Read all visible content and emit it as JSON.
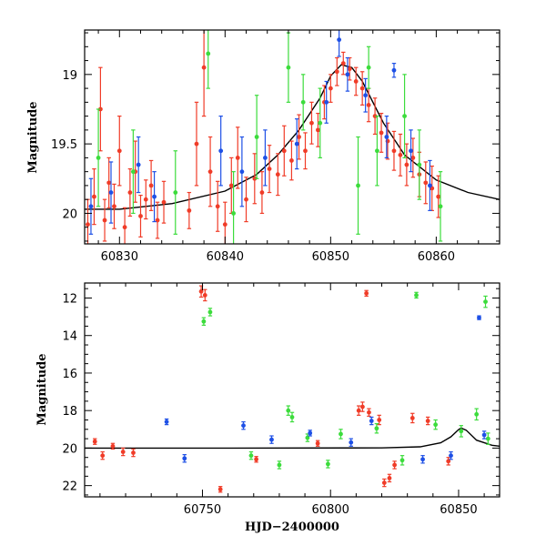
{
  "figure": {
    "xlabel": "HJD−2400000",
    "ylabel_top": "Magnitude",
    "ylabel_bottom": "Magnitude"
  },
  "colors": {
    "red": "#f03c28",
    "green": "#3cdc3c",
    "blue": "#1e50e6",
    "model": "#000000"
  },
  "chart_data": [
    {
      "type": "scatter",
      "panel": "top",
      "title": "",
      "xlabel": "",
      "ylabel": "Magnitude",
      "xlim": [
        60826.7,
        60866.0
      ],
      "ylim": [
        20.22,
        18.68
      ],
      "y_inverted": true,
      "xticks": [
        60830,
        60840,
        60850,
        60860
      ],
      "yticks": [
        19,
        19.5,
        20
      ],
      "model_curve": {
        "description": "smooth peaked light-curve model",
        "x": [
          60826.7,
          60830,
          60835,
          60840,
          60843,
          60845,
          60847,
          60849,
          60850,
          60851,
          60852,
          60853,
          60855,
          60857,
          60860,
          60863,
          60866
        ],
        "y": [
          19.97,
          19.97,
          19.93,
          19.84,
          19.72,
          19.58,
          19.4,
          19.17,
          19.01,
          18.93,
          18.95,
          19.05,
          19.35,
          19.58,
          19.76,
          19.85,
          19.9
        ]
      },
      "series": [
        {
          "color": "red",
          "points": [
            {
              "x": 60827.0,
              "y": 20.08,
              "err": 0.18
            },
            {
              "x": 60827.6,
              "y": 19.88,
              "err": 0.2
            },
            {
              "x": 60828.2,
              "y": 19.25,
              "err": 0.3
            },
            {
              "x": 60828.6,
              "y": 20.05,
              "err": 0.15
            },
            {
              "x": 60829.0,
              "y": 19.78,
              "err": 0.18
            },
            {
              "x": 60829.5,
              "y": 19.95,
              "err": 0.16
            },
            {
              "x": 60830.0,
              "y": 19.55,
              "err": 0.25
            },
            {
              "x": 60830.5,
              "y": 20.1,
              "err": 0.14
            },
            {
              "x": 60831.0,
              "y": 19.85,
              "err": 0.17
            },
            {
              "x": 60831.5,
              "y": 19.7,
              "err": 0.22
            },
            {
              "x": 60832.0,
              "y": 20.02,
              "err": 0.15
            },
            {
              "x": 60832.5,
              "y": 19.9,
              "err": 0.14
            },
            {
              "x": 60833.0,
              "y": 19.8,
              "err": 0.18
            },
            {
              "x": 60833.6,
              "y": 20.05,
              "err": 0.13
            },
            {
              "x": 60834.2,
              "y": 19.92,
              "err": 0.15
            },
            {
              "x": 60836.6,
              "y": 19.98,
              "err": 0.13
            },
            {
              "x": 60837.3,
              "y": 19.5,
              "err": 0.3
            },
            {
              "x": 60838.0,
              "y": 18.95,
              "err": 0.35
            },
            {
              "x": 60838.6,
              "y": 19.7,
              "err": 0.25
            },
            {
              "x": 60839.3,
              "y": 19.95,
              "err": 0.18
            },
            {
              "x": 60840.0,
              "y": 20.08,
              "err": 0.16
            },
            {
              "x": 60840.6,
              "y": 19.8,
              "err": 0.2
            },
            {
              "x": 60841.2,
              "y": 19.6,
              "err": 0.22
            },
            {
              "x": 60842.0,
              "y": 19.9,
              "err": 0.16
            },
            {
              "x": 60842.8,
              "y": 19.75,
              "err": 0.18
            },
            {
              "x": 60843.5,
              "y": 19.85,
              "err": 0.15
            },
            {
              "x": 60844.2,
              "y": 19.68,
              "err": 0.17
            },
            {
              "x": 60845.0,
              "y": 19.72,
              "err": 0.15
            },
            {
              "x": 60845.6,
              "y": 19.55,
              "err": 0.18
            },
            {
              "x": 60846.3,
              "y": 19.62,
              "err": 0.14
            },
            {
              "x": 60847.0,
              "y": 19.45,
              "err": 0.16
            },
            {
              "x": 60847.6,
              "y": 19.55,
              "err": 0.13
            },
            {
              "x": 60848.2,
              "y": 19.35,
              "err": 0.15
            },
            {
              "x": 60848.8,
              "y": 19.4,
              "err": 0.12
            },
            {
              "x": 60849.4,
              "y": 19.2,
              "err": 0.12
            },
            {
              "x": 60850.0,
              "y": 19.1,
              "err": 0.1
            },
            {
              "x": 60850.6,
              "y": 18.98,
              "err": 0.1
            },
            {
              "x": 60851.2,
              "y": 18.92,
              "err": 0.08
            },
            {
              "x": 60851.8,
              "y": 18.96,
              "err": 0.08
            },
            {
              "x": 60852.4,
              "y": 19.05,
              "err": 0.1
            },
            {
              "x": 60853.0,
              "y": 19.1,
              "err": 0.12
            },
            {
              "x": 60853.6,
              "y": 19.22,
              "err": 0.12
            },
            {
              "x": 60854.2,
              "y": 19.3,
              "err": 0.13
            },
            {
              "x": 60854.8,
              "y": 19.42,
              "err": 0.14
            },
            {
              "x": 60855.4,
              "y": 19.48,
              "err": 0.13
            },
            {
              "x": 60856.0,
              "y": 19.55,
              "err": 0.14
            },
            {
              "x": 60856.6,
              "y": 19.58,
              "err": 0.15
            },
            {
              "x": 60857.2,
              "y": 19.65,
              "err": 0.15
            },
            {
              "x": 60857.8,
              "y": 19.6,
              "err": 0.14
            },
            {
              "x": 60858.4,
              "y": 19.72,
              "err": 0.16
            },
            {
              "x": 60859.0,
              "y": 19.78,
              "err": 0.15
            },
            {
              "x": 60859.6,
              "y": 19.82,
              "err": 0.16
            },
            {
              "x": 60860.2,
              "y": 19.88,
              "err": 0.15
            }
          ]
        },
        {
          "color": "green",
          "points": [
            {
              "x": 60828.0,
              "y": 19.6,
              "err": 0.35
            },
            {
              "x": 60831.3,
              "y": 19.7,
              "err": 0.3
            },
            {
              "x": 60835.3,
              "y": 19.85,
              "err": 0.3
            },
            {
              "x": 60838.4,
              "y": 18.85,
              "err": 0.25
            },
            {
              "x": 60840.8,
              "y": 20.0,
              "err": 0.3
            },
            {
              "x": 60843.0,
              "y": 19.45,
              "err": 0.3
            },
            {
              "x": 60846.0,
              "y": 18.95,
              "err": 0.25
            },
            {
              "x": 60847.4,
              "y": 19.2,
              "err": 0.2
            },
            {
              "x": 60849.0,
              "y": 19.35,
              "err": 0.25
            },
            {
              "x": 60852.6,
              "y": 19.8,
              "err": 0.35
            },
            {
              "x": 60853.6,
              "y": 18.95,
              "err": 0.15
            },
            {
              "x": 60854.4,
              "y": 19.55,
              "err": 0.25
            },
            {
              "x": 60857.0,
              "y": 19.3,
              "err": 0.3
            },
            {
              "x": 60858.4,
              "y": 19.65,
              "err": 0.25
            },
            {
              "x": 60860.4,
              "y": 19.95,
              "err": 0.25
            }
          ]
        },
        {
          "color": "blue",
          "points": [
            {
              "x": 60827.3,
              "y": 19.95,
              "err": 0.2
            },
            {
              "x": 60829.2,
              "y": 19.85,
              "err": 0.22
            },
            {
              "x": 60831.8,
              "y": 19.65,
              "err": 0.2
            },
            {
              "x": 60833.3,
              "y": 19.88,
              "err": 0.18
            },
            {
              "x": 60839.6,
              "y": 19.55,
              "err": 0.25
            },
            {
              "x": 60841.6,
              "y": 19.7,
              "err": 0.25
            },
            {
              "x": 60843.8,
              "y": 19.6,
              "err": 0.2
            },
            {
              "x": 60846.8,
              "y": 19.5,
              "err": 0.18
            },
            {
              "x": 60849.6,
              "y": 19.2,
              "err": 0.15
            },
            {
              "x": 60850.8,
              "y": 18.75,
              "err": 0.12
            },
            {
              "x": 60851.6,
              "y": 19.0,
              "err": 0.12
            },
            {
              "x": 60853.3,
              "y": 19.15,
              "err": 0.12
            },
            {
              "x": 60855.3,
              "y": 19.45,
              "err": 0.15
            },
            {
              "x": 60856.0,
              "y": 18.97,
              "err": 0.05
            },
            {
              "x": 60857.6,
              "y": 19.55,
              "err": 0.15
            },
            {
              "x": 60859.4,
              "y": 19.8,
              "err": 0.18
            }
          ]
        }
      ]
    },
    {
      "type": "scatter",
      "panel": "bottom",
      "title": "",
      "xlabel": "HJD−2400000",
      "ylabel": "Magnitude",
      "xlim": [
        60704.0,
        60866.0
      ],
      "ylim": [
        22.6,
        11.2
      ],
      "y_inverted": true,
      "xticks": [
        60750,
        60800,
        60850
      ],
      "yticks": [
        12,
        14,
        16,
        18,
        20,
        22
      ],
      "model_curve": {
        "description": "smooth peaked light-curve model",
        "x": [
          60704,
          60760,
          60820,
          60835,
          60843,
          60847,
          60850,
          60851,
          60853,
          60857,
          60863,
          60866
        ],
        "y": [
          20.0,
          20.0,
          19.99,
          19.93,
          19.72,
          19.4,
          19.01,
          18.93,
          19.05,
          19.58,
          19.85,
          19.9
        ]
      },
      "series": [
        {
          "color": "red",
          "points": [
            {
              "x": 60708,
              "y": 19.65,
              "err": 0.15
            },
            {
              "x": 60711,
              "y": 20.4,
              "err": 0.2
            },
            {
              "x": 60715,
              "y": 19.9,
              "err": 0.15
            },
            {
              "x": 60719,
              "y": 20.2,
              "err": 0.2
            },
            {
              "x": 60723,
              "y": 20.25,
              "err": 0.2
            },
            {
              "x": 60749.5,
              "y": 11.65,
              "err": 0.3
            },
            {
              "x": 60751.0,
              "y": 11.85,
              "err": 0.3
            },
            {
              "x": 60757,
              "y": 22.2,
              "err": 0.15
            },
            {
              "x": 60771,
              "y": 20.6,
              "err": 0.15
            },
            {
              "x": 60795,
              "y": 19.75,
              "err": 0.15
            },
            {
              "x": 60811,
              "y": 18.0,
              "err": 0.25
            },
            {
              "x": 60812.5,
              "y": 17.8,
              "err": 0.25
            },
            {
              "x": 60814,
              "y": 11.75,
              "err": 0.15
            },
            {
              "x": 60815,
              "y": 18.1,
              "err": 0.2
            },
            {
              "x": 60819,
              "y": 18.5,
              "err": 0.25
            },
            {
              "x": 60821,
              "y": 21.85,
              "err": 0.2
            },
            {
              "x": 60823,
              "y": 21.6,
              "err": 0.2
            },
            {
              "x": 60825,
              "y": 20.9,
              "err": 0.2
            },
            {
              "x": 60832,
              "y": 18.4,
              "err": 0.25
            },
            {
              "x": 60838,
              "y": 18.55,
              "err": 0.2
            },
            {
              "x": 60846,
              "y": 20.7,
              "err": 0.2
            }
          ]
        },
        {
          "color": "green",
          "points": [
            {
              "x": 60750.5,
              "y": 13.25,
              "err": 0.2
            },
            {
              "x": 60753.0,
              "y": 12.75,
              "err": 0.2
            },
            {
              "x": 60769,
              "y": 20.4,
              "err": 0.2
            },
            {
              "x": 60780,
              "y": 20.9,
              "err": 0.2
            },
            {
              "x": 60783.5,
              "y": 18.0,
              "err": 0.25
            },
            {
              "x": 60785,
              "y": 18.35,
              "err": 0.25
            },
            {
              "x": 60791,
              "y": 19.45,
              "err": 0.2
            },
            {
              "x": 60799,
              "y": 20.85,
              "err": 0.2
            },
            {
              "x": 60804,
              "y": 19.25,
              "err": 0.25
            },
            {
              "x": 60818,
              "y": 18.95,
              "err": 0.25
            },
            {
              "x": 60828,
              "y": 20.65,
              "err": 0.25
            },
            {
              "x": 60833.5,
              "y": 11.85,
              "err": 0.15
            },
            {
              "x": 60841,
              "y": 18.75,
              "err": 0.25
            },
            {
              "x": 60851,
              "y": 19.1,
              "err": 0.3
            },
            {
              "x": 60857,
              "y": 18.2,
              "err": 0.3
            },
            {
              "x": 60860.5,
              "y": 12.2,
              "err": 0.3
            },
            {
              "x": 60861.5,
              "y": 19.5,
              "err": 0.3
            }
          ]
        },
        {
          "color": "blue",
          "points": [
            {
              "x": 60736,
              "y": 18.6,
              "err": 0.15
            },
            {
              "x": 60743,
              "y": 20.55,
              "err": 0.2
            },
            {
              "x": 60766,
              "y": 18.8,
              "err": 0.2
            },
            {
              "x": 60777,
              "y": 19.55,
              "err": 0.2
            },
            {
              "x": 60792,
              "y": 19.2,
              "err": 0.15
            },
            {
              "x": 60808,
              "y": 19.7,
              "err": 0.2
            },
            {
              "x": 60816,
              "y": 18.55,
              "err": 0.2
            },
            {
              "x": 60836,
              "y": 20.6,
              "err": 0.2
            },
            {
              "x": 60847,
              "y": 20.4,
              "err": 0.2
            },
            {
              "x": 60858,
              "y": 13.05,
              "err": 0.1
            },
            {
              "x": 60860,
              "y": 19.3,
              "err": 0.2
            }
          ]
        }
      ]
    }
  ]
}
